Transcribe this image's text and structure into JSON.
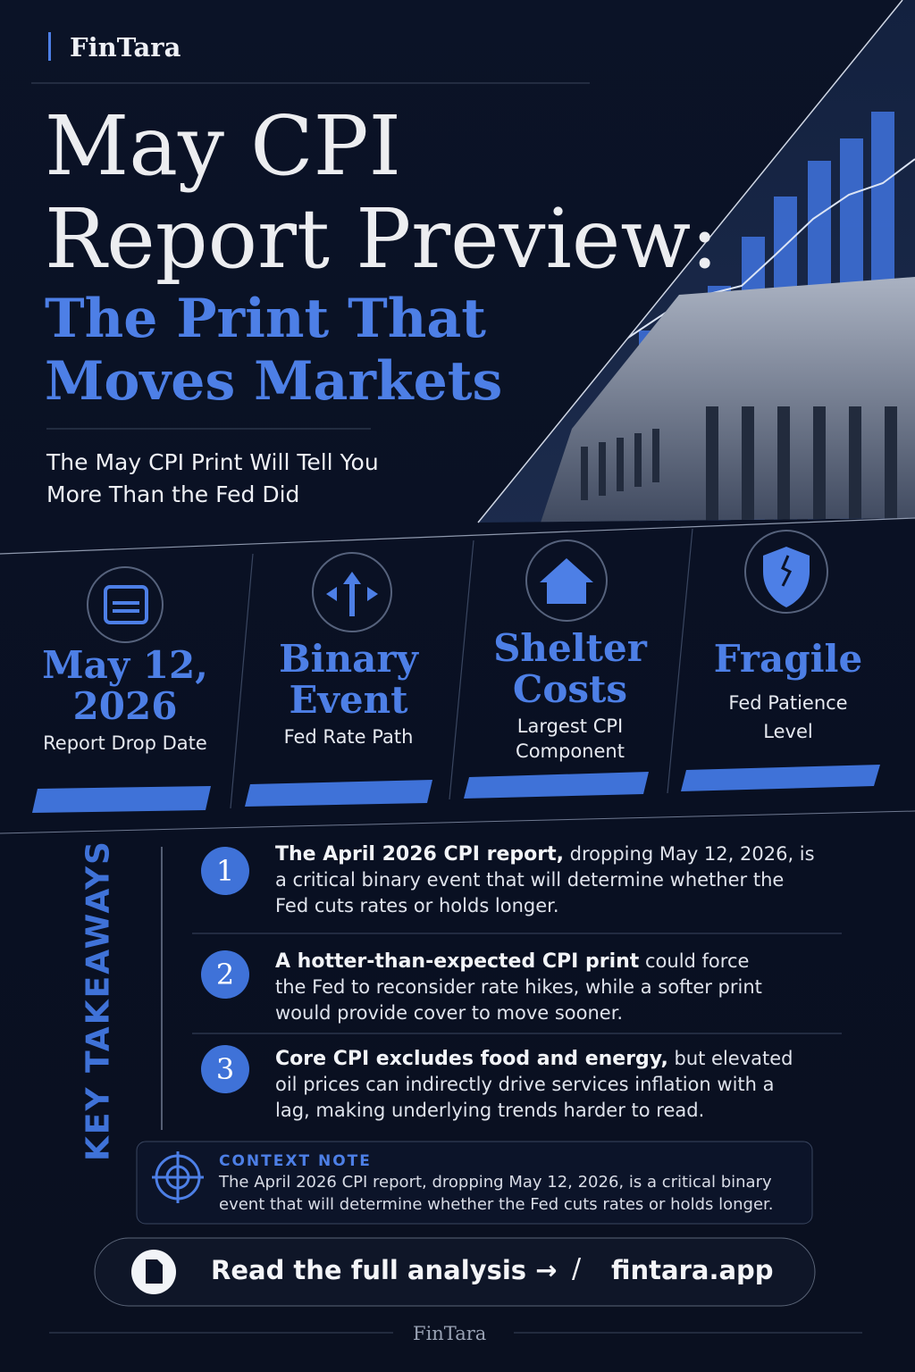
{
  "brand": "FinTara",
  "header": {
    "title_line1": "May CPI",
    "title_line2": "Report Preview:",
    "highlight_line1": "The Print That",
    "highlight_line2": "Moves Markets",
    "subtitle_line1": "The May CPI Print Will Tell You",
    "subtitle_line2": "More Than the Fed Did"
  },
  "stats": [
    {
      "value_line1": "May 12,",
      "value_line2": "2026",
      "label_line1": "Report Drop Date",
      "label_line2": null
    },
    {
      "value_line1": "Binary",
      "value_line2": "Event",
      "label_line1": "Fed Rate Path",
      "label_line2": null
    },
    {
      "value_line1": "Shelter",
      "value_line2": "Costs",
      "label_line1": "Largest CPI",
      "label_line2": "Component"
    },
    {
      "value_line1": "Fragile",
      "value_line2": null,
      "label_line1": "Fed Patience",
      "label_line2": "Level"
    }
  ],
  "takeaways": {
    "heading": "KEY TAKEAWAYS",
    "items": [
      {
        "number": "1",
        "lead": "The April 2026 CPI report,",
        "text": "dropping May 12, 2026, is a critical binary event that will determine whether the Fed cuts rates or holds longer."
      },
      {
        "number": "2",
        "lead": "A hotter-than-expected CPI print",
        "text": "could force the Fed to reconsider rate hikes, while a softer print would provide cover to move sooner."
      },
      {
        "number": "3",
        "lead": "Core CPI excludes food and energy,",
        "text": "but elevated oil prices can indirectly drive services inflation with a lag, making underlying trends harder to read."
      }
    ]
  },
  "context_note": {
    "label": "CONTEXT NOTE",
    "text": "The April 2026 CPI report, dropping May 12, 2026, is a critical binary event that will determine whether the Fed cuts rates or holds longer."
  },
  "cta": {
    "text": "Read the full analysis →",
    "separator": "/",
    "link": "fintara.app"
  },
  "footer": {
    "brand": "FinTara"
  }
}
